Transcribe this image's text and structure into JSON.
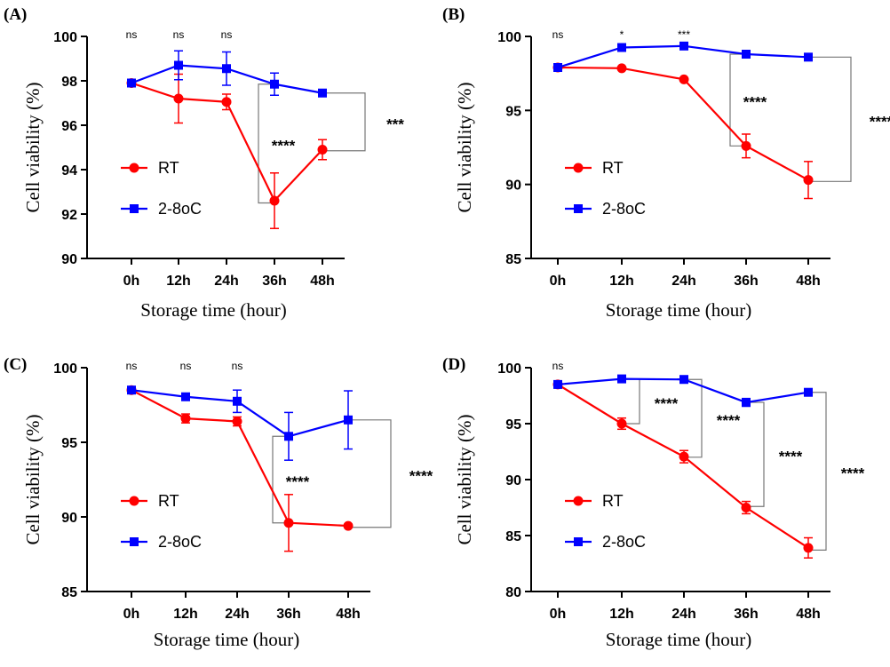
{
  "figure": {
    "panels": [
      "(A)",
      "(B)",
      "(C)",
      "(D)"
    ]
  },
  "chart_data": [
    {
      "panel_label": "(A)",
      "type": "line",
      "categories": [
        "0h",
        "12h",
        "24h",
        "36h",
        "48h"
      ],
      "xlabel": "Storage time (hour)",
      "ylabel": "Cell viability (%)",
      "ylim": [
        90,
        100
      ],
      "yticks": [
        90,
        92,
        94,
        96,
        98,
        100
      ],
      "legend_position": "lower-left",
      "series": [
        {
          "name": "RT",
          "color": "#ff0000",
          "marker": "circle",
          "values": [
            97.9,
            97.2,
            97.05,
            92.6,
            94.9
          ],
          "errors": [
            0.1,
            1.1,
            0.35,
            1.25,
            0.45
          ]
        },
        {
          "name": "2-8oC",
          "color": "#0000ff",
          "marker": "square",
          "values": [
            97.9,
            98.7,
            98.55,
            97.85,
            97.45
          ],
          "errors": [
            0.1,
            0.65,
            0.75,
            0.5,
            0.1
          ]
        }
      ],
      "significance_top": [
        "ns",
        "ns",
        "ns",
        "",
        ""
      ],
      "brackets": [
        {
          "category": "36h",
          "low": 92.5,
          "high": 97.85,
          "label": "****"
        },
        {
          "category": "48h",
          "low": 94.85,
          "high": 97.45,
          "label": "***"
        }
      ]
    },
    {
      "panel_label": "(B)",
      "type": "line",
      "categories": [
        "0h",
        "12h",
        "24h",
        "36h",
        "48h"
      ],
      "xlabel": "Storage time (hour)",
      "ylabel": "Cell viability (%)",
      "ylim": [
        85,
        100
      ],
      "yticks": [
        85,
        90,
        95,
        100
      ],
      "legend_position": "lower-left",
      "series": [
        {
          "name": "RT",
          "color": "#ff0000",
          "marker": "circle",
          "values": [
            97.9,
            97.85,
            97.1,
            92.6,
            90.3
          ],
          "errors": [
            0.1,
            0.1,
            0.1,
            0.8,
            1.25
          ]
        },
        {
          "name": "2-8oC",
          "color": "#0000ff",
          "marker": "square",
          "values": [
            97.9,
            99.25,
            99.35,
            98.8,
            98.6
          ],
          "errors": [
            0.1,
            0.1,
            0.1,
            0.1,
            0.1
          ]
        }
      ],
      "significance_top": [
        "ns",
        "*",
        "***",
        "",
        ""
      ],
      "brackets": [
        {
          "category": "36h",
          "low": 92.6,
          "high": 98.8,
          "label": "****"
        },
        {
          "category": "48h",
          "low": 90.2,
          "high": 98.6,
          "label": "****"
        }
      ]
    },
    {
      "panel_label": "(C)",
      "type": "line",
      "categories": [
        "0h",
        "12h",
        "24h",
        "36h",
        "48h"
      ],
      "xlabel": "Storage time (hour)",
      "ylabel": "Cell viability (%)",
      "ylim": [
        85,
        100
      ],
      "yticks": [
        85,
        90,
        95,
        100
      ],
      "legend_position": "lower-left",
      "series": [
        {
          "name": "RT",
          "color": "#ff0000",
          "marker": "circle",
          "values": [
            98.5,
            96.6,
            96.4,
            89.6,
            89.4
          ],
          "errors": [
            0.1,
            0.3,
            0.3,
            1.9,
            0.1
          ]
        },
        {
          "name": "2-8oC",
          "color": "#0000ff",
          "marker": "square",
          "values": [
            98.5,
            98.05,
            97.75,
            95.4,
            96.5
          ],
          "errors": [
            0.1,
            0.2,
            0.75,
            1.6,
            1.95
          ]
        }
      ],
      "significance_top": [
        "ns",
        "ns",
        "ns",
        "",
        ""
      ],
      "brackets": [
        {
          "category": "36h",
          "low": 89.6,
          "high": 95.4,
          "label": "****"
        },
        {
          "category": "48h",
          "low": 89.3,
          "high": 96.5,
          "label": "****"
        }
      ]
    },
    {
      "panel_label": "(D)",
      "type": "line",
      "categories": [
        "0h",
        "12h",
        "24h",
        "36h",
        "48h"
      ],
      "xlabel": "Storage time (hour)",
      "ylabel": "Cell viability (%)",
      "ylim": [
        80,
        100
      ],
      "yticks": [
        80,
        85,
        90,
        95,
        100
      ],
      "legend_position": "lower-left",
      "series": [
        {
          "name": "RT",
          "color": "#ff0000",
          "marker": "circle",
          "values": [
            98.5,
            95.0,
            92.05,
            87.5,
            83.9
          ],
          "errors": [
            0.1,
            0.5,
            0.55,
            0.55,
            0.9
          ]
        },
        {
          "name": "2-8oC",
          "color": "#0000ff",
          "marker": "square",
          "values": [
            98.5,
            99.0,
            98.95,
            96.9,
            97.8
          ],
          "errors": [
            0.1,
            0.1,
            0.1,
            0.35,
            0.1
          ]
        }
      ],
      "significance_top": [
        "ns",
        "",
        "",
        "",
        ""
      ],
      "brackets": [
        {
          "category": "12h",
          "low": 95.0,
          "high": 99.0,
          "label": "****"
        },
        {
          "category": "24h",
          "low": 92.0,
          "high": 98.95,
          "label": "****"
        },
        {
          "category": "36h",
          "low": 87.6,
          "high": 96.9,
          "label": "****"
        },
        {
          "category": "48h",
          "low": 83.7,
          "high": 97.8,
          "label": "****"
        }
      ]
    }
  ]
}
